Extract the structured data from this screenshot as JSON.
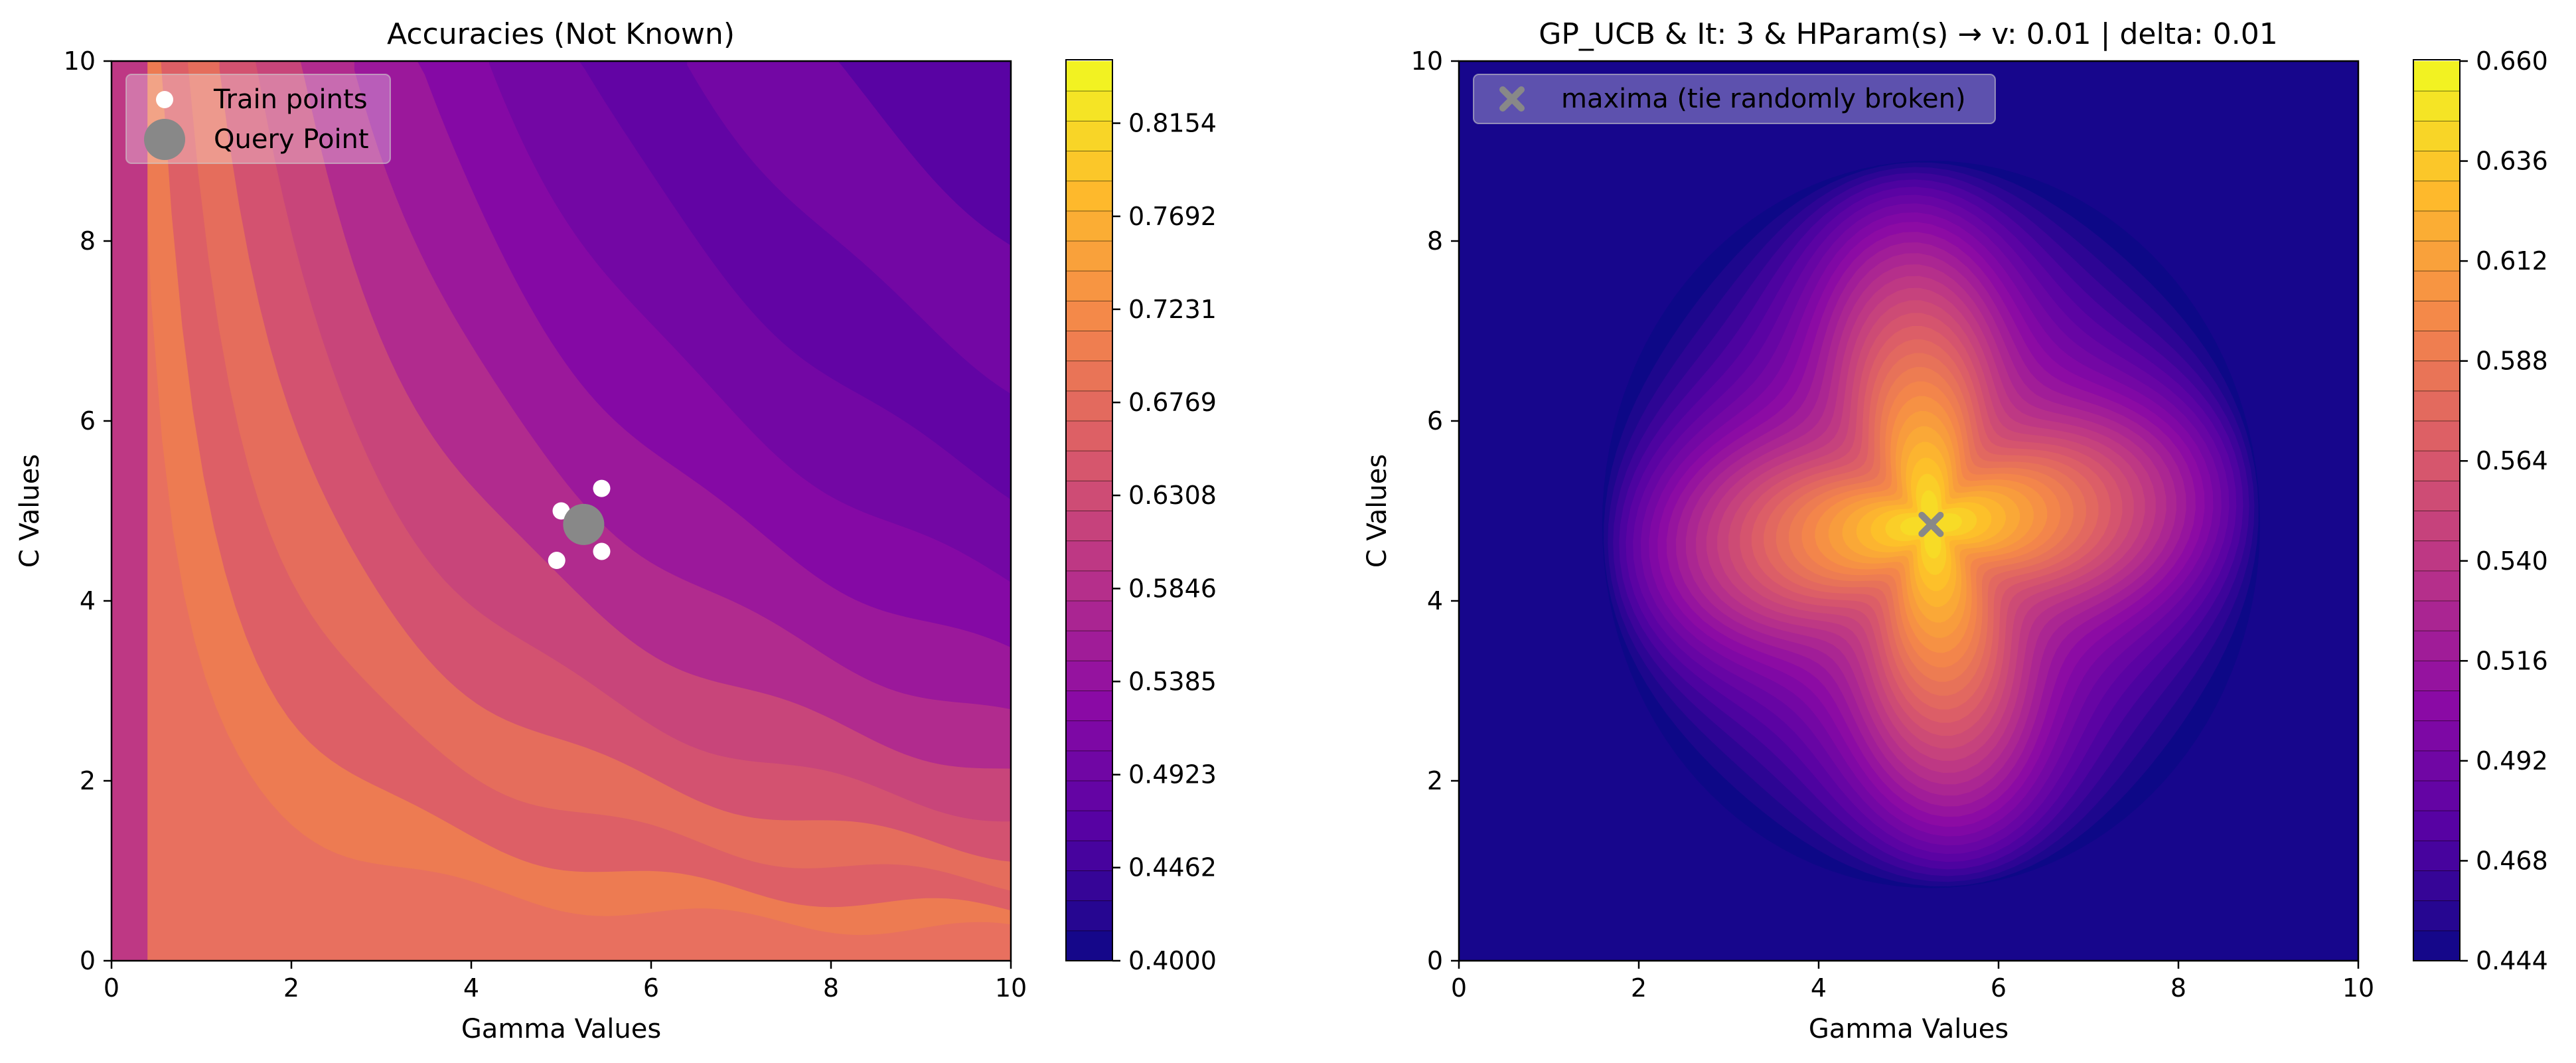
{
  "chart_data": [
    {
      "type": "heatmap",
      "title": "Accuracies (Not Known)",
      "xlabel": "Gamma Values",
      "ylabel": "C Values",
      "xlim": [
        0,
        10
      ],
      "ylim": [
        0,
        10
      ],
      "x_ticks": [
        "0",
        "2",
        "4",
        "6",
        "8",
        "10"
      ],
      "y_ticks": [
        "0",
        "2",
        "4",
        "6",
        "8",
        "10"
      ],
      "colormap": "plasma",
      "colorbar": {
        "range": [
          0.4,
          0.8462
        ],
        "ticks": [
          "0.4000",
          "0.4462",
          "0.4923",
          "0.5385",
          "0.5846",
          "0.6308",
          "0.6769",
          "0.7231",
          "0.7692",
          "0.8154"
        ]
      },
      "legend_placement": "upper-left",
      "legend": [
        {
          "label": "Train points",
          "marker": "white-dot"
        },
        {
          "label": "Query Point",
          "marker": "grey-dot"
        }
      ],
      "train_points": [
        {
          "x": 5.0,
          "y": 5.0
        },
        {
          "x": 5.45,
          "y": 5.25
        },
        {
          "x": 4.95,
          "y": 4.45
        },
        {
          "x": 5.45,
          "y": 4.55
        }
      ],
      "query_point": {
        "x": 5.25,
        "y": 4.85
      }
    },
    {
      "type": "heatmap",
      "title": "GP_UCB & It: 3 & HParam(s) → v: 0.01 | delta: 0.01",
      "xlabel": "Gamma Values",
      "ylabel": "C Values",
      "xlim": [
        0,
        10
      ],
      "ylim": [
        0,
        10
      ],
      "x_ticks": [
        "0",
        "2",
        "4",
        "6",
        "8",
        "10"
      ],
      "y_ticks": [
        "0",
        "2",
        "4",
        "6",
        "8",
        "10"
      ],
      "colormap": "plasma",
      "colorbar": {
        "range": [
          0.444,
          0.66
        ],
        "ticks": [
          "0.444",
          "0.468",
          "0.492",
          "0.516",
          "0.540",
          "0.564",
          "0.588",
          "0.612",
          "0.636",
          "0.660"
        ]
      },
      "legend_placement": "upper-left",
      "legend": [
        {
          "label": "maxima (tie randomly broken)",
          "marker": "grey-x"
        }
      ],
      "maxima": {
        "x": 5.25,
        "y": 4.85
      }
    }
  ],
  "colors": {
    "train_point": "#ffffff",
    "query_point": "#888888",
    "maxima_marker": "#888888"
  }
}
